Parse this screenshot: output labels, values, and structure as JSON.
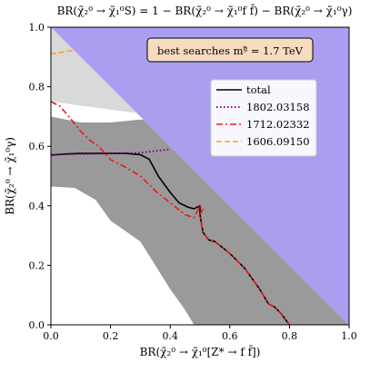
{
  "chart_data": {
    "type": "line",
    "title": "BR(χ̃₂⁰ → χ̃₁⁰S) = 1 − BR(χ̃₂⁰ → χ̃₁⁰f f̄) − BR(χ̃₂⁰ → χ̃₁⁰γ)",
    "xlabel": "BR(χ̃₂⁰ → χ̃₁⁰[Z* → f f̄])",
    "ylabel": "BR(χ̃₂⁰ → χ̃₁⁰γ)",
    "xlim": [
      0,
      1
    ],
    "ylim": [
      0,
      1
    ],
    "xticks": [
      "0.0",
      "0.2",
      "0.4",
      "0.6",
      "0.8",
      "1.0"
    ],
    "yticks": [
      "0.0",
      "0.2",
      "0.4",
      "0.6",
      "0.8",
      "1.0"
    ],
    "grid": false,
    "annotation": "best searches mᵍ̃ = 1.7 TeV",
    "legend_position": "upper-right",
    "colors": {
      "unphysical": "#a99ef0",
      "light_region": "#d9d9d9",
      "dark_region": "#9a9a9a",
      "annotation_bg": "#f5dcc0"
    },
    "regions": {
      "unphysical": [
        [
          0,
          1
        ],
        [
          1,
          1
        ],
        [
          1,
          0
        ]
      ],
      "light": [
        [
          0,
          1
        ],
        [
          0,
          0.75
        ],
        [
          0.15,
          0.73
        ],
        [
          0.3,
          0.71
        ],
        [
          0.31,
          0.69
        ]
      ],
      "dark": [
        [
          0,
          0.7
        ],
        [
          0.05,
          0.69
        ],
        [
          0.1,
          0.68
        ],
        [
          0.2,
          0.68
        ],
        [
          0.3,
          0.69
        ],
        [
          0.31,
          0.69
        ],
        [
          1.0,
          0.0
        ],
        [
          0.48,
          0.0
        ],
        [
          0.45,
          0.05
        ],
        [
          0.4,
          0.12
        ],
        [
          0.35,
          0.2
        ],
        [
          0.3,
          0.28
        ],
        [
          0.2,
          0.35
        ],
        [
          0.15,
          0.42
        ],
        [
          0.08,
          0.46
        ],
        [
          0.0,
          0.465
        ]
      ]
    },
    "series": [
      {
        "name": "total",
        "color": "#000000",
        "dash": "solid",
        "x": [
          0.0,
          0.05,
          0.1,
          0.15,
          0.2,
          0.25,
          0.3,
          0.33,
          0.36,
          0.4,
          0.43,
          0.46,
          0.48,
          0.49,
          0.5,
          0.5,
          0.51,
          0.53,
          0.55,
          0.6,
          0.65,
          0.7,
          0.73,
          0.75,
          0.77,
          0.8
        ],
        "y": [
          0.57,
          0.574,
          0.576,
          0.576,
          0.576,
          0.576,
          0.572,
          0.556,
          0.5,
          0.445,
          0.41,
          0.395,
          0.39,
          0.395,
          0.4,
          0.37,
          0.31,
          0.285,
          0.28,
          0.24,
          0.19,
          0.12,
          0.07,
          0.06,
          0.04,
          0.0
        ]
      },
      {
        "name": "1802.03158",
        "color": "#800080",
        "dash": "dotted",
        "x": [
          0.0,
          0.1,
          0.2,
          0.3,
          0.35,
          0.4
        ],
        "y": [
          0.572,
          0.574,
          0.576,
          0.578,
          0.584,
          0.59
        ]
      },
      {
        "name": "1712.02332",
        "color": "#e8191b",
        "dash": "dashdot",
        "x": [
          0.0,
          0.03,
          0.06,
          0.1,
          0.13,
          0.16,
          0.2,
          0.25,
          0.3,
          0.35,
          0.4,
          0.45,
          0.48,
          0.49,
          0.5,
          0.51,
          0.5,
          0.51,
          0.53,
          0.55,
          0.6,
          0.65,
          0.7,
          0.73,
          0.75,
          0.77,
          0.8
        ],
        "y": [
          0.75,
          0.735,
          0.7,
          0.65,
          0.62,
          0.6,
          0.555,
          0.53,
          0.5,
          0.45,
          0.41,
          0.37,
          0.36,
          0.38,
          0.4,
          0.39,
          0.37,
          0.31,
          0.285,
          0.28,
          0.24,
          0.19,
          0.12,
          0.07,
          0.06,
          0.04,
          0.0
        ]
      },
      {
        "name": "1606.09150",
        "color": "#ff9f1c",
        "dash": "dashed",
        "x": [
          0.0,
          0.03,
          0.06,
          0.08
        ],
        "y": [
          0.91,
          0.915,
          0.92,
          0.922
        ]
      }
    ]
  }
}
